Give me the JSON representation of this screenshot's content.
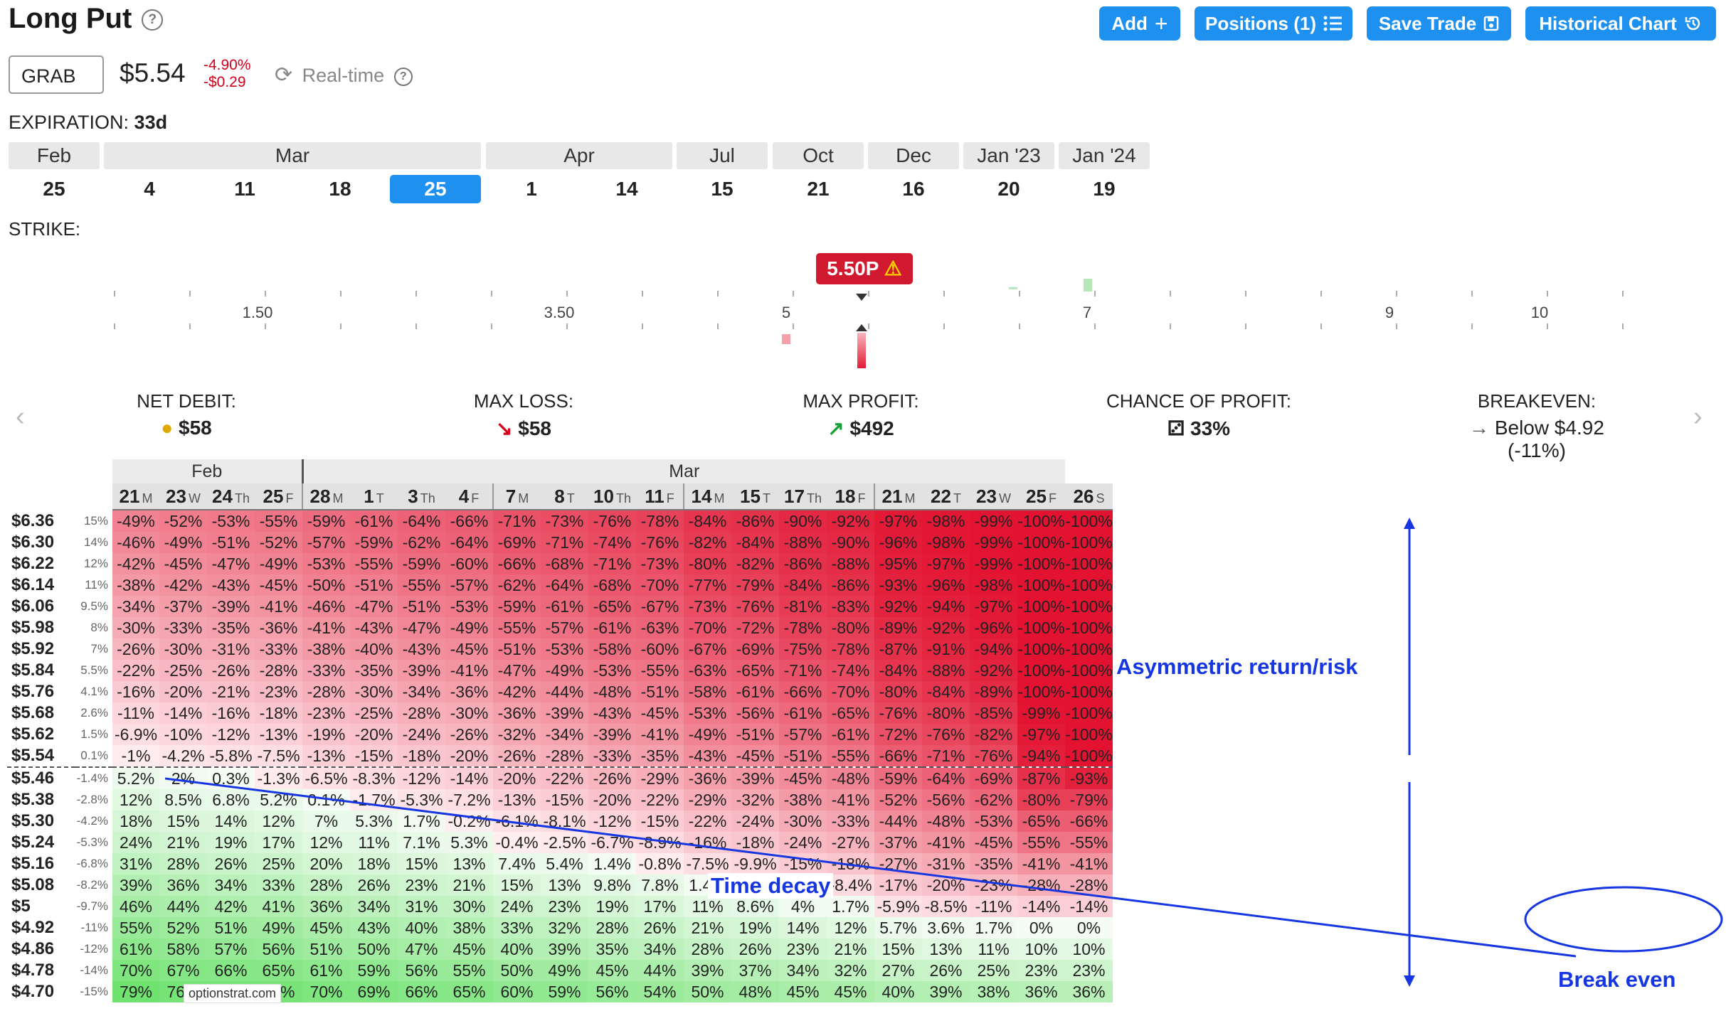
{
  "header": {
    "title": "Long Put",
    "buttons": {
      "add": "Add",
      "positions": "Positions (1)",
      "save": "Save Trade",
      "historical": "Historical Chart"
    }
  },
  "quote": {
    "ticker": "GRAB",
    "price": "$5.54",
    "change_pct": "-4.90%",
    "change_abs": "-$0.29",
    "realtime": "Real-time"
  },
  "expiration": {
    "label": "EXPIRATION:",
    "value": "33d",
    "months": [
      "Feb",
      "Mar",
      "Apr",
      "Jul",
      "Oct",
      "Dec",
      "Jan '23",
      "Jan '24"
    ],
    "days": [
      "25",
      "4",
      "11",
      "18",
      "25",
      "1",
      "14",
      "15",
      "21",
      "16",
      "20",
      "19"
    ],
    "selected_index": 4
  },
  "strike": {
    "label": "STRIKE:",
    "axis_labels": [
      "1.50",
      "3.50",
      "5",
      "7",
      "9",
      "10"
    ],
    "selected": "5.50P"
  },
  "stats": [
    {
      "label": "NET DEBIT:",
      "value": "$58",
      "icon": "coins-icon"
    },
    {
      "label": "MAX LOSS:",
      "value": "$58",
      "icon": "arrow-down-right-icon"
    },
    {
      "label": "MAX PROFIT:",
      "value": "$492",
      "icon": "arrow-up-right-icon"
    },
    {
      "label": "CHANCE OF PROFIT:",
      "value": "33%",
      "icon": "dice-icon"
    },
    {
      "label": "BREAKEVEN:",
      "value": "Below $4.92 (-11%)",
      "icon": "arrow-right-icon"
    }
  ],
  "table": {
    "months": [
      {
        "label": "Feb",
        "span": 4
      },
      {
        "label": "Mar",
        "span": 16
      }
    ],
    "dates": [
      {
        "d": "21",
        "w": "M"
      },
      {
        "d": "23",
        "w": "W"
      },
      {
        "d": "24",
        "w": "Th"
      },
      {
        "d": "25",
        "w": "F"
      },
      {
        "d": "28",
        "w": "M"
      },
      {
        "d": "1",
        "w": "T"
      },
      {
        "d": "3",
        "w": "Th"
      },
      {
        "d": "4",
        "w": "F"
      },
      {
        "d": "7",
        "w": "M"
      },
      {
        "d": "8",
        "w": "T"
      },
      {
        "d": "10",
        "w": "Th"
      },
      {
        "d": "11",
        "w": "F"
      },
      {
        "d": "14",
        "w": "M"
      },
      {
        "d": "15",
        "w": "T"
      },
      {
        "d": "17",
        "w": "Th"
      },
      {
        "d": "18",
        "w": "F"
      },
      {
        "d": "21",
        "w": "M"
      },
      {
        "d": "22",
        "w": "T"
      },
      {
        "d": "23",
        "w": "W"
      },
      {
        "d": "25",
        "w": "F"
      },
      {
        "d": "26",
        "w": "S"
      }
    ],
    "rows": [
      {
        "price": "$6.36",
        "pct": "15%",
        "vals": [
          "-49%",
          "-52%",
          "-53%",
          "-55%",
          "-59%",
          "-61%",
          "-64%",
          "-66%",
          "-71%",
          "-73%",
          "-76%",
          "-78%",
          "-84%",
          "-86%",
          "-90%",
          "-92%",
          "-97%",
          "-98%",
          "-99%",
          "-100%",
          "-100%"
        ]
      },
      {
        "price": "$6.30",
        "pct": "14%",
        "vals": [
          "-46%",
          "-49%",
          "-51%",
          "-52%",
          "-57%",
          "-59%",
          "-62%",
          "-64%",
          "-69%",
          "-71%",
          "-74%",
          "-76%",
          "-82%",
          "-84%",
          "-88%",
          "-90%",
          "-96%",
          "-98%",
          "-99%",
          "-100%",
          "-100%"
        ]
      },
      {
        "price": "$6.22",
        "pct": "12%",
        "vals": [
          "-42%",
          "-45%",
          "-47%",
          "-49%",
          "-53%",
          "-55%",
          "-59%",
          "-60%",
          "-66%",
          "-68%",
          "-71%",
          "-73%",
          "-80%",
          "-82%",
          "-86%",
          "-88%",
          "-95%",
          "-97%",
          "-99%",
          "-100%",
          "-100%"
        ]
      },
      {
        "price": "$6.14",
        "pct": "11%",
        "vals": [
          "-38%",
          "-42%",
          "-43%",
          "-45%",
          "-50%",
          "-51%",
          "-55%",
          "-57%",
          "-62%",
          "-64%",
          "-68%",
          "-70%",
          "-77%",
          "-79%",
          "-84%",
          "-86%",
          "-93%",
          "-96%",
          "-98%",
          "-100%",
          "-100%"
        ]
      },
      {
        "price": "$6.06",
        "pct": "9.5%",
        "vals": [
          "-34%",
          "-37%",
          "-39%",
          "-41%",
          "-46%",
          "-47%",
          "-51%",
          "-53%",
          "-59%",
          "-61%",
          "-65%",
          "-67%",
          "-73%",
          "-76%",
          "-81%",
          "-83%",
          "-92%",
          "-94%",
          "-97%",
          "-100%",
          "-100%"
        ]
      },
      {
        "price": "$5.98",
        "pct": "8%",
        "vals": [
          "-30%",
          "-33%",
          "-35%",
          "-36%",
          "-41%",
          "-43%",
          "-47%",
          "-49%",
          "-55%",
          "-57%",
          "-61%",
          "-63%",
          "-70%",
          "-72%",
          "-78%",
          "-80%",
          "-89%",
          "-92%",
          "-96%",
          "-100%",
          "-100%"
        ]
      },
      {
        "price": "$5.92",
        "pct": "7%",
        "vals": [
          "-26%",
          "-30%",
          "-31%",
          "-33%",
          "-38%",
          "-40%",
          "-43%",
          "-45%",
          "-51%",
          "-53%",
          "-58%",
          "-60%",
          "-67%",
          "-69%",
          "-75%",
          "-78%",
          "-87%",
          "-91%",
          "-94%",
          "-100%",
          "-100%"
        ]
      },
      {
        "price": "$5.84",
        "pct": "5.5%",
        "vals": [
          "-22%",
          "-25%",
          "-26%",
          "-28%",
          "-33%",
          "-35%",
          "-39%",
          "-41%",
          "-47%",
          "-49%",
          "-53%",
          "-55%",
          "-63%",
          "-65%",
          "-71%",
          "-74%",
          "-84%",
          "-88%",
          "-92%",
          "-100%",
          "-100%"
        ]
      },
      {
        "price": "$5.76",
        "pct": "4.1%",
        "vals": [
          "-16%",
          "-20%",
          "-21%",
          "-23%",
          "-28%",
          "-30%",
          "-34%",
          "-36%",
          "-42%",
          "-44%",
          "-48%",
          "-51%",
          "-58%",
          "-61%",
          "-66%",
          "-70%",
          "-80%",
          "-84%",
          "-89%",
          "-100%",
          "-100%"
        ]
      },
      {
        "price": "$5.68",
        "pct": "2.6%",
        "vals": [
          "-11%",
          "-14%",
          "-16%",
          "-18%",
          "-23%",
          "-25%",
          "-28%",
          "-30%",
          "-36%",
          "-39%",
          "-43%",
          "-45%",
          "-53%",
          "-56%",
          "-61%",
          "-65%",
          "-76%",
          "-80%",
          "-85%",
          "-99%",
          "-100%"
        ]
      },
      {
        "price": "$5.62",
        "pct": "1.5%",
        "vals": [
          "-6.9%",
          "-10%",
          "-12%",
          "-13%",
          "-19%",
          "-20%",
          "-24%",
          "-26%",
          "-32%",
          "-34%",
          "-39%",
          "-41%",
          "-49%",
          "-51%",
          "-57%",
          "-61%",
          "-72%",
          "-76%",
          "-82%",
          "-97%",
          "-100%"
        ]
      },
      {
        "price": "$5.54",
        "pct": "0.1%",
        "vals": [
          "-1%",
          "-4.2%",
          "-5.8%",
          "-7.5%",
          "-13%",
          "-15%",
          "-18%",
          "-20%",
          "-26%",
          "-28%",
          "-33%",
          "-35%",
          "-43%",
          "-45%",
          "-51%",
          "-55%",
          "-66%",
          "-71%",
          "-76%",
          "-94%",
          "-100%"
        ]
      },
      {
        "price": "$5.46",
        "pct": "-1.4%",
        "vals": [
          "5.2%",
          "2%",
          "0.3%",
          "-1.3%",
          "-6.5%",
          "-8.3%",
          "-12%",
          "-14%",
          "-20%",
          "-22%",
          "-26%",
          "-29%",
          "-36%",
          "-39%",
          "-45%",
          "-48%",
          "-59%",
          "-64%",
          "-69%",
          "-87%",
          "-93%"
        ]
      },
      {
        "price": "$5.38",
        "pct": "-2.8%",
        "vals": [
          "12%",
          "8.5%",
          "6.8%",
          "5.2%",
          "0.1%",
          "-1.7%",
          "-5.3%",
          "-7.2%",
          "-13%",
          "-15%",
          "-20%",
          "-22%",
          "-29%",
          "-32%",
          "-38%",
          "-41%",
          "-52%",
          "-56%",
          "-62%",
          "-80%",
          "-79%"
        ]
      },
      {
        "price": "$5.30",
        "pct": "-4.2%",
        "vals": [
          "18%",
          "15%",
          "14%",
          "12%",
          "7%",
          "5.3%",
          "1.7%",
          "-0.2%",
          "-6.1%",
          "-8.1%",
          "-12%",
          "-15%",
          "-22%",
          "-24%",
          "-30%",
          "-33%",
          "-44%",
          "-48%",
          "-53%",
          "-65%",
          "-66%"
        ]
      },
      {
        "price": "$5.24",
        "pct": "-5.3%",
        "vals": [
          "24%",
          "21%",
          "19%",
          "17%",
          "12%",
          "11%",
          "7.1%",
          "5.3%",
          "-0.4%",
          "-2.5%",
          "-6.7%",
          "-8.9%",
          "-16%",
          "-18%",
          "-24%",
          "-27%",
          "-37%",
          "-41%",
          "-45%",
          "-55%",
          "-55%"
        ]
      },
      {
        "price": "$5.16",
        "pct": "-6.8%",
        "vals": [
          "31%",
          "28%",
          "26%",
          "25%",
          "20%",
          "18%",
          "15%",
          "13%",
          "7.4%",
          "5.4%",
          "1.4%",
          "-0.8%",
          "-7.5%",
          "-9.9%",
          "-15%",
          "-18%",
          "-27%",
          "-31%",
          "-35%",
          "-41%",
          "-41%"
        ]
      },
      {
        "price": "$5.08",
        "pct": "-8.2%",
        "vals": [
          "39%",
          "36%",
          "34%",
          "33%",
          "28%",
          "26%",
          "23%",
          "21%",
          "15%",
          "13%",
          "9.8%",
          "7.8%",
          "1.4%",
          "-0.9%",
          "-5.8%",
          "-8.4%",
          "-17%",
          "-20%",
          "-23%",
          "-28%",
          "-28%"
        ]
      },
      {
        "price": "$5",
        "pct": "-9.7%",
        "vals": [
          "46%",
          "44%",
          "42%",
          "41%",
          "36%",
          "34%",
          "31%",
          "30%",
          "24%",
          "23%",
          "19%",
          "17%",
          "11%",
          "8.6%",
          "4%",
          "1.7%",
          "-5.9%",
          "-8.5%",
          "-11%",
          "-14%",
          "-14%"
        ]
      },
      {
        "price": "$4.92",
        "pct": "-11%",
        "vals": [
          "55%",
          "52%",
          "51%",
          "49%",
          "45%",
          "43%",
          "40%",
          "38%",
          "33%",
          "32%",
          "28%",
          "26%",
          "21%",
          "19%",
          "14%",
          "12%",
          "5.7%",
          "3.6%",
          "1.7%",
          "0%",
          "0%"
        ]
      },
      {
        "price": "$4.86",
        "pct": "-12%",
        "vals": [
          "61%",
          "58%",
          "57%",
          "56%",
          "51%",
          "50%",
          "47%",
          "45%",
          "40%",
          "39%",
          "35%",
          "34%",
          "28%",
          "26%",
          "23%",
          "21%",
          "15%",
          "13%",
          "11%",
          "10%",
          "10%"
        ]
      },
      {
        "price": "$4.78",
        "pct": "-14%",
        "vals": [
          "70%",
          "67%",
          "66%",
          "65%",
          "61%",
          "59%",
          "56%",
          "55%",
          "50%",
          "49%",
          "45%",
          "44%",
          "39%",
          "37%",
          "34%",
          "32%",
          "27%",
          "26%",
          "25%",
          "23%",
          "23%"
        ]
      },
      {
        "price": "$4.70",
        "pct": "-15%",
        "vals": [
          "79%",
          "76%",
          "75%",
          "74%",
          "70%",
          "69%",
          "66%",
          "65%",
          "60%",
          "59%",
          "56%",
          "54%",
          "50%",
          "48%",
          "45%",
          "45%",
          "40%",
          "39%",
          "38%",
          "36%",
          "36%"
        ]
      }
    ]
  },
  "annotations": {
    "asymmetric": "Asymmetric return/risk",
    "time_decay": "Time decay",
    "break_even": "Break even",
    "color": "#1536e0"
  },
  "watermark": "optionstrat.com",
  "colors": {
    "accent": "#1e90f0",
    "loss": "#d0021b",
    "profit": "#3fbf3f"
  }
}
